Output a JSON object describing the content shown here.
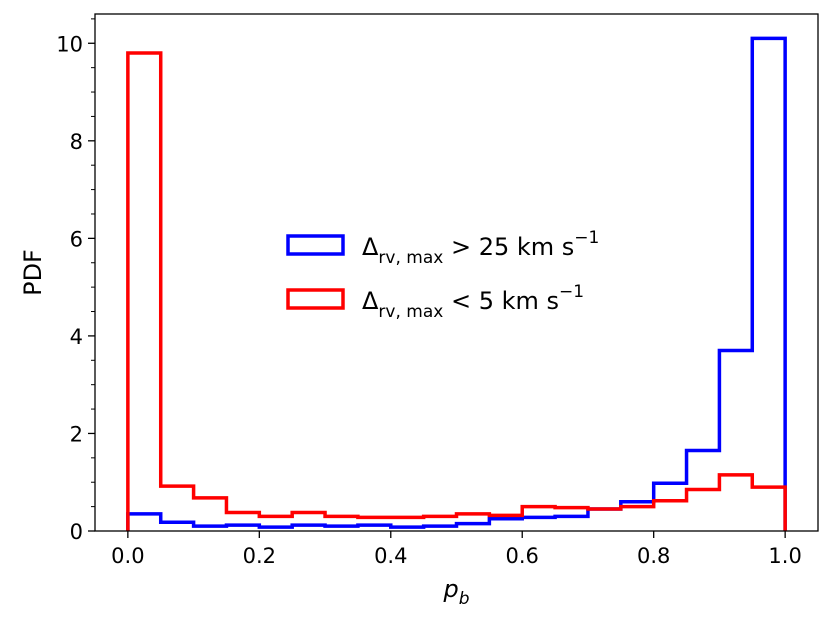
{
  "chart_data": {
    "type": "histogram",
    "title": "",
    "xlabel": {
      "main": "p",
      "sub": "b"
    },
    "ylabel": "PDF",
    "xlim": [
      -0.05,
      1.05
    ],
    "ylim": [
      0,
      10.6
    ],
    "xticks": [
      0.0,
      0.2,
      0.4,
      0.6,
      0.8,
      1.0
    ],
    "xtick_labels": [
      "0.0",
      "0.2",
      "0.4",
      "0.6",
      "0.8",
      "1.0"
    ],
    "yticks": [
      0,
      2,
      4,
      6,
      8,
      10
    ],
    "ytick_labels": [
      "0",
      "2",
      "4",
      "6",
      "8",
      "10"
    ],
    "bin_edges": [
      0.0,
      0.05,
      0.1,
      0.15,
      0.2,
      0.25,
      0.3,
      0.35,
      0.4,
      0.45,
      0.5,
      0.55,
      0.6,
      0.65,
      0.7,
      0.75,
      0.8,
      0.85,
      0.9,
      0.95,
      1.0
    ],
    "grid": false,
    "legend_position": "center",
    "series": [
      {
        "name": "Δrv, max > 25 km s−1",
        "label_main": "Δ",
        "label_sub": "rv, max",
        "label_rest": " > 25 km s",
        "label_sup": "−1",
        "color": "#0000ff",
        "values": [
          0.35,
          0.18,
          0.1,
          0.12,
          0.08,
          0.12,
          0.1,
          0.12,
          0.08,
          0.1,
          0.15,
          0.25,
          0.28,
          0.3,
          0.45,
          0.6,
          0.98,
          1.65,
          3.7,
          10.1
        ]
      },
      {
        "name": "Δrv, max < 5 km s−1",
        "label_main": "Δ",
        "label_sub": "rv, max",
        "label_rest": " < 5 km s",
        "label_sup": "−1",
        "color": "#ff0000",
        "values": [
          9.8,
          0.92,
          0.68,
          0.38,
          0.3,
          0.38,
          0.3,
          0.28,
          0.28,
          0.3,
          0.35,
          0.32,
          0.5,
          0.48,
          0.45,
          0.5,
          0.62,
          0.85,
          1.15,
          0.9
        ]
      }
    ]
  }
}
